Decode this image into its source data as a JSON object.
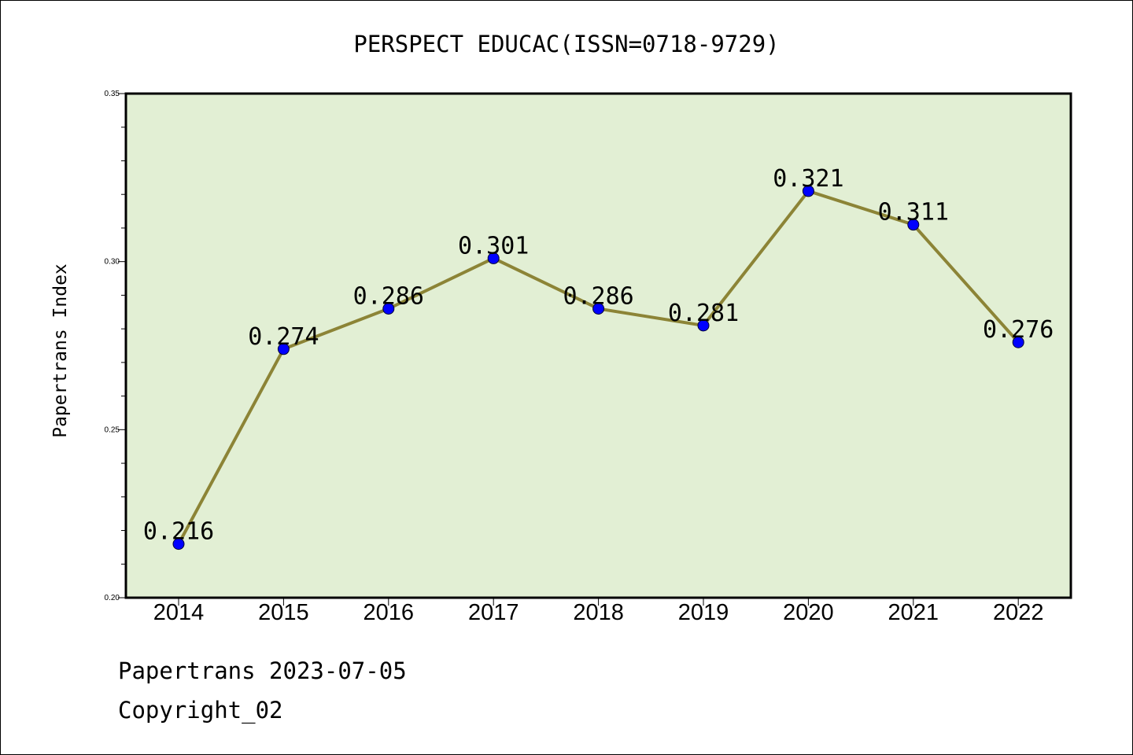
{
  "chart_data": {
    "type": "line",
    "title": "PERSPECT EDUCAC(ISSN=0718-9729)",
    "xlabel": "",
    "ylabel": "Papertrans Index",
    "categories": [
      "2014",
      "2015",
      "2016",
      "2017",
      "2018",
      "2019",
      "2020",
      "2021",
      "2022"
    ],
    "series": [
      {
        "values": [
          0.216,
          0.274,
          0.286,
          0.301,
          0.286,
          0.281,
          0.321,
          0.311,
          0.276
        ],
        "labels": [
          "0.216",
          "0.274",
          "0.286",
          "0.301",
          "0.286",
          "0.281",
          "0.321",
          "0.311",
          "0.276"
        ]
      }
    ],
    "ylim": [
      0.2,
      0.35
    ],
    "yticks": [
      "0.20",
      "0.25",
      "0.30",
      "0.35"
    ],
    "grid": false,
    "colors": {
      "plot_background": "#e2efd4",
      "line": "#8c8436",
      "marker": "#0000ff"
    }
  },
  "footer": {
    "line1": "Papertrans 2023-07-05",
    "line2": "Copyright_02"
  }
}
